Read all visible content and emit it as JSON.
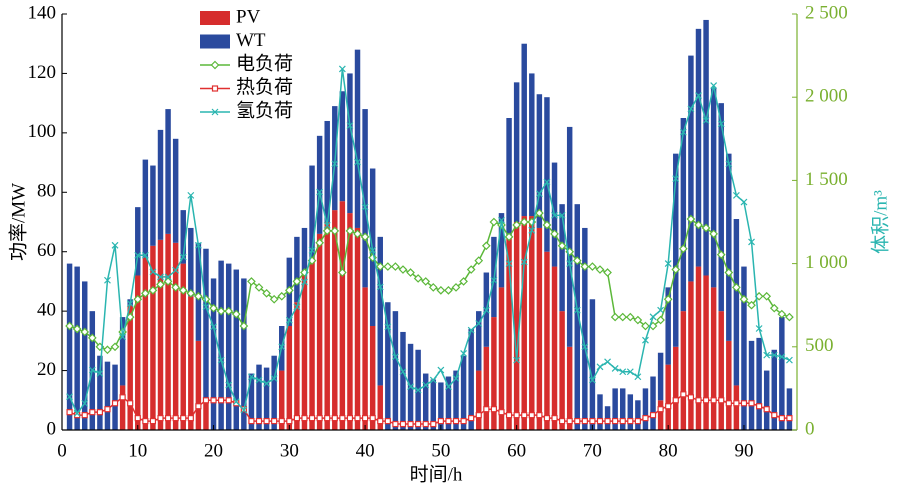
{
  "chart_data": {
    "type": "bar",
    "x": [
      1,
      2,
      3,
      4,
      5,
      6,
      7,
      8,
      9,
      10,
      11,
      12,
      13,
      14,
      15,
      16,
      17,
      18,
      19,
      20,
      21,
      22,
      23,
      24,
      25,
      26,
      27,
      28,
      29,
      30,
      31,
      32,
      33,
      34,
      35,
      36,
      37,
      38,
      39,
      40,
      41,
      42,
      43,
      44,
      45,
      46,
      47,
      48,
      49,
      50,
      51,
      52,
      53,
      54,
      55,
      56,
      57,
      58,
      59,
      60,
      61,
      62,
      63,
      64,
      65,
      66,
      67,
      68,
      69,
      70,
      71,
      72,
      73,
      74,
      75,
      76,
      77,
      78,
      79,
      80,
      81,
      82,
      83,
      84,
      85,
      86,
      87,
      88,
      89,
      90,
      91,
      92,
      93,
      94,
      95,
      96
    ],
    "series": [
      {
        "name": "PV",
        "type": "bar",
        "color": "#d62d2d",
        "values": [
          0,
          0,
          0,
          0,
          0,
          0,
          0,
          15,
          42,
          52,
          58,
          62,
          64,
          66,
          63,
          56,
          45,
          30,
          10,
          0,
          0,
          0,
          0,
          0,
          0,
          0,
          0,
          0,
          20,
          35,
          43,
          52,
          58,
          66,
          70,
          74,
          77,
          73,
          68,
          48,
          35,
          15,
          0,
          0,
          0,
          0,
          0,
          0,
          0,
          0,
          0,
          0,
          0,
          0,
          20,
          28,
          38,
          48,
          65,
          70,
          72,
          72,
          68,
          60,
          55,
          40,
          28,
          0,
          0,
          0,
          0,
          0,
          0,
          0,
          0,
          0,
          0,
          0,
          10,
          22,
          28,
          40,
          50,
          55,
          52,
          48,
          40,
          30,
          15,
          0,
          0,
          0,
          0,
          0,
          0,
          0
        ]
      },
      {
        "name": "WT",
        "type": "bar",
        "color": "#2a4a9e",
        "values": [
          56,
          55,
          50,
          40,
          25,
          23,
          22,
          23,
          2,
          23,
          33,
          27,
          37,
          42,
          35,
          18,
          23,
          33,
          51,
          51,
          57,
          56,
          54,
          51,
          19,
          22,
          21,
          25,
          15,
          23,
          22,
          16,
          31,
          33,
          34,
          35,
          37,
          47,
          60,
          60,
          53,
          50,
          43,
          40,
          33,
          29,
          27,
          19,
          17,
          16,
          18,
          20,
          25,
          34,
          20,
          25,
          27,
          25,
          40,
          47,
          58,
          48,
          45,
          52,
          35,
          36,
          74,
          76,
          68,
          44,
          12,
          8,
          14,
          14,
          12,
          10,
          14,
          18,
          16,
          26,
          65,
          65,
          76,
          80,
          86,
          67,
          70,
          63,
          56,
          55,
          30,
          31,
          20,
          27,
          38,
          14
        ]
      },
      {
        "name": "电负荷",
        "type": "line",
        "marker": "diamond",
        "color": "#5cb83a",
        "values": [
          35,
          34,
          33,
          31,
          28,
          27,
          28,
          33,
          38,
          44,
          46,
          47,
          49,
          50,
          48,
          47,
          46,
          45,
          44,
          41,
          40,
          40,
          39,
          35,
          50,
          48,
          46,
          44,
          45,
          47,
          50,
          53,
          57,
          63,
          67,
          67,
          53,
          67,
          66,
          65,
          58,
          55,
          55,
          55,
          54,
          53,
          51,
          50,
          48,
          47,
          47,
          48,
          50,
          54,
          57,
          62,
          70,
          69,
          65,
          69,
          70,
          70,
          73,
          69,
          66,
          62,
          60,
          57,
          55,
          55,
          54,
          53,
          38,
          38,
          38,
          37,
          35,
          35,
          37,
          44,
          54,
          61,
          71,
          69,
          68,
          66,
          59,
          53,
          48,
          44,
          42,
          45,
          45,
          41,
          39,
          38
        ]
      },
      {
        "name": "热负荷",
        "type": "line",
        "marker": "square",
        "color": "#e03030",
        "values": [
          6,
          5,
          5,
          6,
          6,
          7,
          9,
          11,
          9,
          4,
          3,
          3,
          4,
          4,
          4,
          4,
          4,
          8,
          10,
          10,
          10,
          10,
          9,
          7,
          3,
          3,
          3,
          3,
          3,
          3,
          4,
          4,
          4,
          4,
          4,
          4,
          4,
          4,
          4,
          4,
          4,
          3,
          3,
          2,
          2,
          2,
          2,
          2,
          2,
          3,
          3,
          3,
          3,
          4,
          5,
          7,
          7,
          6,
          5,
          5,
          5,
          5,
          5,
          4,
          4,
          3,
          3,
          3,
          3,
          3,
          3,
          3,
          3,
          3,
          3,
          3,
          4,
          5,
          7,
          8,
          10,
          12,
          11,
          10,
          10,
          10,
          10,
          9,
          9,
          9,
          9,
          8,
          7,
          5,
          4,
          4
        ]
      },
      {
        "name": "氢负荷",
        "type": "line",
        "marker": "cross",
        "axis": "y2",
        "color": "#2ab5b0",
        "values": [
          200,
          100,
          160,
          360,
          340,
          900,
          1110,
          560,
          760,
          1050,
          1050,
          950,
          920,
          920,
          960,
          1040,
          1410,
          1110,
          740,
          620,
          420,
          270,
          170,
          120,
          320,
          300,
          280,
          310,
          500,
          660,
          740,
          890,
          1080,
          1430,
          1230,
          1600,
          2170,
          1830,
          1610,
          1340,
          1080,
          860,
          620,
          440,
          350,
          260,
          240,
          270,
          300,
          360,
          260,
          310,
          460,
          600,
          640,
          720,
          900,
          1260,
          1000,
          420,
          1010,
          1200,
          1420,
          1490,
          1290,
          1290,
          1000,
          720,
          500,
          300,
          380,
          410,
          370,
          350,
          350,
          320,
          540,
          680,
          720,
          1000,
          1510,
          1790,
          1930,
          2010,
          1860,
          2070,
          1840,
          1600,
          1410,
          1370,
          1130,
          610,
          450,
          450,
          440,
          420
        ]
      }
    ],
    "xlabel": "时间/h",
    "ylabel": "功率/MW",
    "y2label": "体积/m³",
    "xlim": [
      0,
      97
    ],
    "xticks": [
      0,
      10,
      20,
      30,
      40,
      50,
      60,
      70,
      80,
      90
    ],
    "ylim": [
      0,
      140
    ],
    "yticks": [
      0,
      20,
      40,
      60,
      80,
      100,
      120,
      140
    ],
    "y2lim": [
      0,
      2500
    ],
    "y2ticks": [
      0,
      {
        "value": 500,
        "label": "500"
      },
      {
        "value": 1000,
        "label": "1 000"
      },
      {
        "value": 1500,
        "label": "1 500"
      },
      {
        "value": 2000,
        "label": "2 000"
      },
      {
        "value": 2500,
        "label": "2 500"
      }
    ],
    "y2color": "#7ab030",
    "y2labelcolor": "#2ab5b0",
    "legend": "upper left"
  }
}
